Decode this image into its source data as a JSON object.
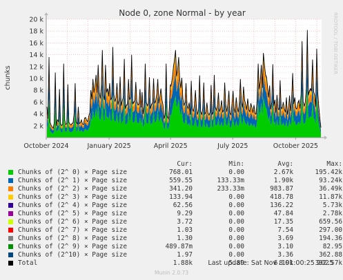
{
  "chart_data": {
    "type": "area",
    "title": "Node 0, zone Normal - by year",
    "ylabel": "chunks",
    "ylim": [
      0,
      20000
    ],
    "yticks": [
      {
        "v": 2000,
        "label": "2 k"
      },
      {
        "v": 4000,
        "label": "4 k"
      },
      {
        "v": 6000,
        "label": "6 k"
      },
      {
        "v": 8000,
        "label": "8 k"
      },
      {
        "v": 10000,
        "label": "10 k"
      },
      {
        "v": 12000,
        "label": "12 k"
      },
      {
        "v": 14000,
        "label": "14 k"
      },
      {
        "v": 16000,
        "label": "16 k"
      },
      {
        "v": 18000,
        "label": "18 k"
      },
      {
        "v": 20000,
        "label": "20 k"
      }
    ],
    "x_domain": [
      "2024-10-01",
      "2025-11-08"
    ],
    "xticks": [
      {
        "date": "2024-10-01",
        "label": "October 2024"
      },
      {
        "date": "2025-01-01",
        "label": "January 2025"
      },
      {
        "date": "2025-04-01",
        "label": "April 2025"
      },
      {
        "date": "2025-07-01",
        "label": "July 2025"
      },
      {
        "date": "2025-10-01",
        "label": "October 2025"
      }
    ],
    "grid": true,
    "stacked": true,
    "columns": [
      "Cur:",
      "Min:",
      "Avg:",
      "Max:"
    ],
    "series": [
      {
        "name": "Chunks of (2^ 0) × Page size",
        "color": "#00cc00",
        "cur": "768.01",
        "min": "0.00",
        "avg": "2.67k",
        "max": "195.42k"
      },
      {
        "name": "Chunks of (2^ 1) × Page size",
        "color": "#0066b3",
        "cur": "559.55",
        "min": "133.33m",
        "avg": "1.90k",
        "max": "93.24k"
      },
      {
        "name": "Chunks of (2^ 2) × Page size",
        "color": "#ff8000",
        "cur": "341.20",
        "min": "233.33m",
        "avg": "983.87",
        "max": "36.49k"
      },
      {
        "name": "Chunks of (2^ 3) × Page size",
        "color": "#ffcc00",
        "cur": "133.94",
        "min": "0.00",
        "avg": "418.78",
        "max": "11.87k"
      },
      {
        "name": "Chunks of (2^ 4) × Page size",
        "color": "#330099",
        "cur": "62.56",
        "min": "0.00",
        "avg": "136.22",
        "max": "5.73k"
      },
      {
        "name": "Chunks of (2^ 5) × Page size",
        "color": "#990099",
        "cur": "9.29",
        "min": "0.00",
        "avg": "47.84",
        "max": "2.78k"
      },
      {
        "name": "Chunks of (2^ 6) × Page size",
        "color": "#ccff00",
        "cur": "3.72",
        "min": "0.00",
        "avg": "17.35",
        "max": "659.56"
      },
      {
        "name": "Chunks of (2^ 7) × Page size",
        "color": "#ff0000",
        "cur": "1.03",
        "min": "0.00",
        "avg": "7.54",
        "max": "297.00"
      },
      {
        "name": "Chunks of (2^ 8) × Page size",
        "color": "#808080",
        "cur": "1.30",
        "min": "0.00",
        "avg": "3.69",
        "max": "194.36"
      },
      {
        "name": "Chunks of (2^ 9) × Page size",
        "color": "#008f00",
        "cur": "489.87m",
        "min": "0.00",
        "avg": "3.10",
        "max": "82.95"
      },
      {
        "name": "Chunks of (2^10) × Page size",
        "color": "#00487d",
        "cur": "1.97",
        "min": "0.00",
        "avg": "3.36",
        "max": "362.88"
      },
      {
        "name": "Total",
        "color": "#000000",
        "cur": "1.88k",
        "min": "5.89",
        "avg": "6.19k",
        "max": "302.57k"
      }
    ],
    "total_samples": [
      5200,
      3200,
      13600,
      2600,
      2100,
      1800,
      1600,
      2500,
      11000,
      2000,
      3000,
      2700,
      8200,
      2400,
      2000,
      2200,
      12500,
      3000,
      2200,
      2400,
      9000,
      2600,
      2300,
      2100,
      2400,
      2500,
      4000,
      9200,
      2600,
      2300,
      5200,
      2400,
      2500,
      3000,
      2300,
      2200,
      3300,
      3400,
      2900,
      2700,
      3600,
      4200,
      8000,
      6500,
      9900,
      7600,
      8800,
      10600,
      7600,
      12300,
      7700,
      6600,
      8600,
      14800,
      7200,
      6400,
      12300,
      7700,
      8300,
      7000,
      9200,
      6400,
      6800,
      15300,
      7300,
      6100,
      6700,
      9200,
      5600,
      6300,
      10300,
      5400,
      6200,
      6800,
      13300,
      4900,
      5500,
      5700,
      9900,
      6500,
      6800,
      14000,
      5800,
      6000,
      6300,
      9400,
      6100,
      5600,
      5700,
      8200,
      5100,
      7700,
      4000,
      5200,
      12500,
      6000,
      5400,
      5800,
      10200,
      4900,
      5600,
      5900,
      10000,
      5900,
      6200,
      7300,
      9900,
      5800,
      6900,
      8300,
      6400,
      5500,
      3200,
      3900,
      12500,
      3600,
      3200,
      4900,
      8900,
      9000,
      10200,
      12000,
      13200,
      14800,
      10400,
      11500,
      13600,
      9800,
      8400,
      10100,
      6600,
      5500,
      5900,
      9200,
      5400,
      4900,
      5900,
      3900,
      9600,
      4900,
      4400,
      5500,
      8000,
      5000,
      3900,
      4700,
      10500,
      4400,
      3900,
      4900,
      9300,
      4000,
      4300,
      5900,
      4200,
      3800,
      4300,
      8900,
      3900,
      4300,
      10600,
      5200,
      4600,
      5300,
      7600,
      4400,
      4900,
      6300,
      4300,
      4700,
      9300,
      5600,
      4400,
      5600,
      7900,
      4200,
      3800,
      5800,
      7900,
      4900,
      4200,
      6800,
      5100,
      4300,
      5900,
      9900,
      5900,
      5100,
      8600,
      6400,
      5600,
      4700,
      6600,
      4700,
      4400,
      5800,
      5100,
      4200,
      5500,
      4100,
      4000,
      6500,
      12500,
      8200,
      9500,
      12300,
      8400,
      14300,
      12300,
      10700,
      10200,
      8600,
      6800,
      8800,
      4800,
      6000,
      12400,
      5400,
      6400,
      4200,
      7200,
      4900,
      4800,
      9700,
      5000,
      5000,
      6000,
      4900,
      4300,
      6800,
      3900,
      4900,
      7100,
      4500,
      6300,
      10900,
      5700,
      6800,
      5000,
      4900,
      5900,
      6300,
      4900,
      7200,
      16300,
      6100,
      5300,
      6000,
      8100,
      18200,
      7200,
      7900,
      8300,
      8000,
      13200,
      7800,
      7200,
      5200,
      15000,
      7600,
      5200,
      3300,
      1700
    ]
  },
  "footer": {
    "last_update": "Last update:  Sat Nov  8 01:00:25 2025",
    "munin": "Munin 2.0.73"
  },
  "side_label": "RRDTOOL / TOBI OETIKER"
}
